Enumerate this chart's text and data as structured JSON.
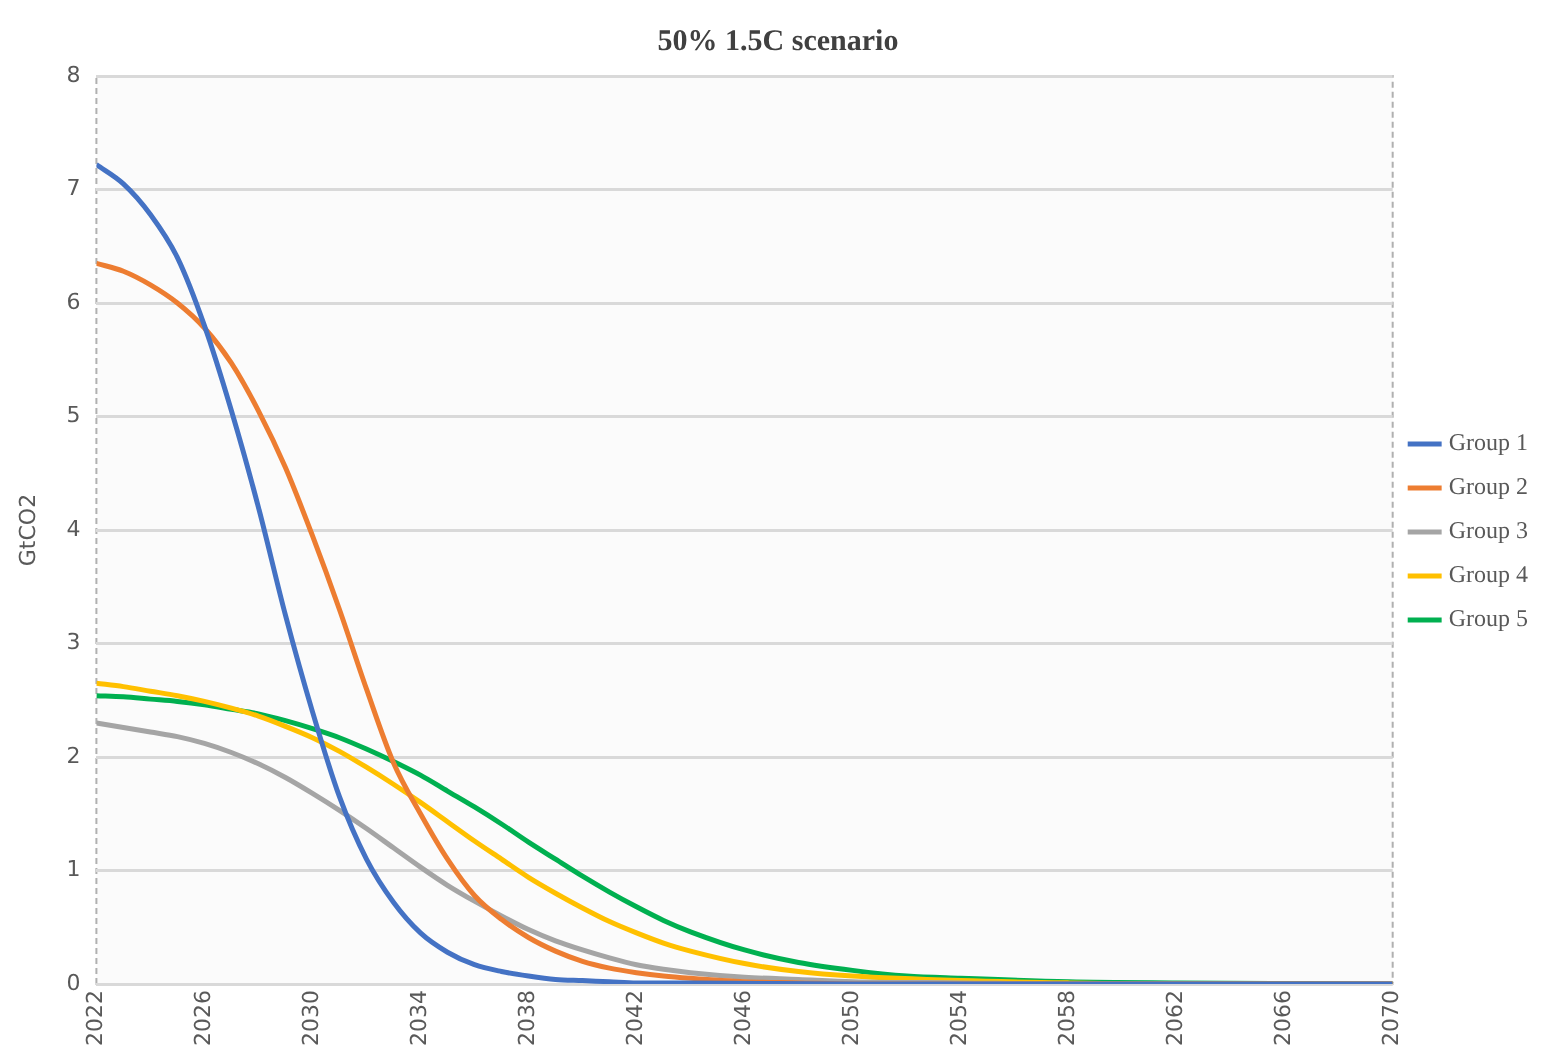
{
  "chart_data": {
    "type": "line",
    "title": "50% 1.5C scenario",
    "ylabel": "GtCO2",
    "xlim": [
      2022,
      2070
    ],
    "xticks": [
      2022,
      2026,
      2030,
      2034,
      2038,
      2042,
      2046,
      2050,
      2054,
      2058,
      2062,
      2066,
      2070
    ],
    "ylim": [
      0,
      8
    ],
    "yticks": [
      0,
      1,
      2,
      3,
      4,
      5,
      6,
      7,
      8
    ],
    "grid": "y",
    "legend": "right",
    "marker": "none",
    "line_style": "solid",
    "series": [
      {
        "name": "Group 1",
        "color": "#4472c4",
        "x": [
          2022,
          2023,
          2024,
          2025,
          2026,
          2027,
          2028,
          2029,
          2030,
          2031,
          2032,
          2033,
          2034,
          2035,
          2036,
          2037,
          2038,
          2039,
          2040,
          2041,
          2042,
          2044,
          2050,
          2070
        ],
        "values": [
          7.22,
          7.05,
          6.78,
          6.4,
          5.8,
          5.05,
          4.2,
          3.25,
          2.4,
          1.65,
          1.1,
          0.72,
          0.45,
          0.28,
          0.17,
          0.11,
          0.07,
          0.04,
          0.03,
          0.02,
          0.01,
          0.01,
          0,
          0
        ]
      },
      {
        "name": "Group 2",
        "color": "#ed7d31",
        "x": [
          2022,
          2023,
          2024,
          2025,
          2026,
          2027,
          2028,
          2029,
          2030,
          2031,
          2032,
          2033,
          2034,
          2035,
          2036,
          2037,
          2038,
          2039,
          2040,
          2041,
          2042,
          2043,
          2044,
          2046,
          2048,
          2050,
          2070
        ],
        "values": [
          6.35,
          6.28,
          6.16,
          6.0,
          5.78,
          5.47,
          5.05,
          4.55,
          3.95,
          3.3,
          2.6,
          1.95,
          1.5,
          1.1,
          0.78,
          0.57,
          0.41,
          0.29,
          0.2,
          0.14,
          0.1,
          0.07,
          0.05,
          0.02,
          0.01,
          0,
          0
        ]
      },
      {
        "name": "Group 3",
        "color": "#a5a5a5",
        "x": [
          2022,
          2023,
          2024,
          2025,
          2026,
          2027,
          2028,
          2029,
          2030,
          2031,
          2032,
          2033,
          2034,
          2035,
          2036,
          2037,
          2038,
          2039,
          2040,
          2041,
          2042,
          2043,
          2044,
          2046,
          2048,
          2050,
          2054,
          2058,
          2070
        ],
        "values": [
          2.3,
          2.26,
          2.22,
          2.18,
          2.12,
          2.04,
          1.94,
          1.82,
          1.68,
          1.53,
          1.37,
          1.2,
          1.03,
          0.87,
          0.73,
          0.6,
          0.48,
          0.38,
          0.3,
          0.23,
          0.17,
          0.13,
          0.1,
          0.06,
          0.04,
          0.02,
          0.01,
          0,
          0
        ]
      },
      {
        "name": "Group 4",
        "color": "#ffc000",
        "x": [
          2022,
          2023,
          2024,
          2025,
          2026,
          2027,
          2028,
          2029,
          2030,
          2031,
          2032,
          2033,
          2034,
          2035,
          2036,
          2037,
          2038,
          2039,
          2040,
          2041,
          2042,
          2043,
          2044,
          2046,
          2048,
          2050,
          2054,
          2058,
          2062,
          2070
        ],
        "values": [
          2.65,
          2.62,
          2.58,
          2.54,
          2.49,
          2.43,
          2.36,
          2.27,
          2.17,
          2.05,
          1.91,
          1.76,
          1.6,
          1.43,
          1.26,
          1.1,
          0.94,
          0.8,
          0.67,
          0.55,
          0.45,
          0.36,
          0.29,
          0.18,
          0.11,
          0.07,
          0.03,
          0.01,
          0,
          0
        ]
      },
      {
        "name": "Group 5",
        "color": "#00b050",
        "x": [
          2022,
          2023,
          2024,
          2025,
          2026,
          2027,
          2028,
          2029,
          2030,
          2031,
          2032,
          2033,
          2034,
          2035,
          2036,
          2037,
          2038,
          2039,
          2040,
          2041,
          2042,
          2043,
          2044,
          2046,
          2048,
          2050,
          2052,
          2054,
          2058,
          2062,
          2070
        ],
        "values": [
          2.54,
          2.53,
          2.51,
          2.49,
          2.46,
          2.42,
          2.38,
          2.32,
          2.25,
          2.17,
          2.07,
          1.96,
          1.84,
          1.7,
          1.56,
          1.41,
          1.25,
          1.1,
          0.95,
          0.81,
          0.68,
          0.56,
          0.46,
          0.3,
          0.19,
          0.12,
          0.07,
          0.05,
          0.02,
          0.01,
          0
        ]
      }
    ]
  }
}
